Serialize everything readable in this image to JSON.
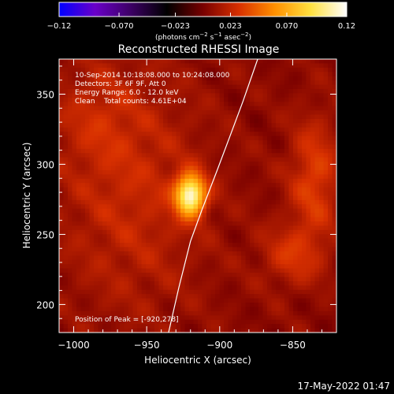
{
  "chart_data": {
    "type": "heatmap",
    "title": "Reconstructed RHESSI Image",
    "xlabel": "Heliocentric X (arcsec)",
    "ylabel": "Heliocentric Y (arcsec)",
    "xlim": [
      -1010,
      -820
    ],
    "ylim": [
      180,
      375
    ],
    "x_ticks": [
      -1000,
      -950,
      -900,
      -850
    ],
    "x_tick_labels": [
      "−1000",
      "−950",
      "−900",
      "−850"
    ],
    "y_ticks": [
      200,
      250,
      300,
      350
    ],
    "y_tick_labels": [
      "200",
      "250",
      "300",
      "350"
    ],
    "colorbar": {
      "range": [
        -0.12,
        0.12
      ],
      "ticks": [
        -0.12,
        -0.07,
        -0.023,
        0.023,
        0.07,
        0.12
      ],
      "tick_labels": [
        "−0.12",
        "−0.070",
        "−0.023",
        "0.023",
        "0.070",
        "0.12"
      ],
      "unit_main": "(photons cm",
      "unit_sup1": "−2",
      "unit_mid": " s",
      "unit_sup2": "−1",
      "unit_end": " asec",
      "unit_sup3": "−2",
      "unit_close": ")",
      "colormap": [
        "#0000ff",
        "#6a00c8",
        "#3c0064",
        "#000000",
        "#780000",
        "#d83000",
        "#ff9000",
        "#ffe040",
        "#ffffff"
      ]
    },
    "annotations": [
      "10-Sep-2014 10:18:08.000 to 10:24:08.000",
      "Detectors: 3F 6F 9F, Att 0",
      "Energy Range: 6.0 - 12.0 keV",
      "Clean    Total counts: 4.61E+04"
    ],
    "peak_text": "Position of Peak = [-920,278]",
    "peak": {
      "x": -920,
      "y": 278,
      "value": 0.12
    },
    "sources": [
      {
        "x": -920,
        "y": 278,
        "sx": 7,
        "sy": 10,
        "amp": 0.105
      },
      {
        "x": -960,
        "y": 280,
        "sx": 35,
        "sy": 60,
        "amp": 0.018
      },
      {
        "x": -835,
        "y": 290,
        "sx": 12,
        "sy": 30,
        "amp": 0.028
      },
      {
        "x": -850,
        "y": 235,
        "sx": 15,
        "sy": 15,
        "amp": 0.022
      },
      {
        "x": -985,
        "y": 335,
        "sx": 20,
        "sy": 25,
        "amp": 0.012
      }
    ],
    "limb_curve": [
      {
        "x": -935,
        "y": 180
      },
      {
        "x": -928,
        "y": 212
      },
      {
        "x": -920,
        "y": 245
      },
      {
        "x": -912,
        "y": 268
      },
      {
        "x": -902,
        "y": 295
      },
      {
        "x": -893,
        "y": 320
      },
      {
        "x": -884,
        "y": 345
      },
      {
        "x": -874,
        "y": 375
      }
    ],
    "grid": false,
    "legend": "none"
  },
  "footer": {
    "timestamp": "17-May-2022 01:47"
  }
}
